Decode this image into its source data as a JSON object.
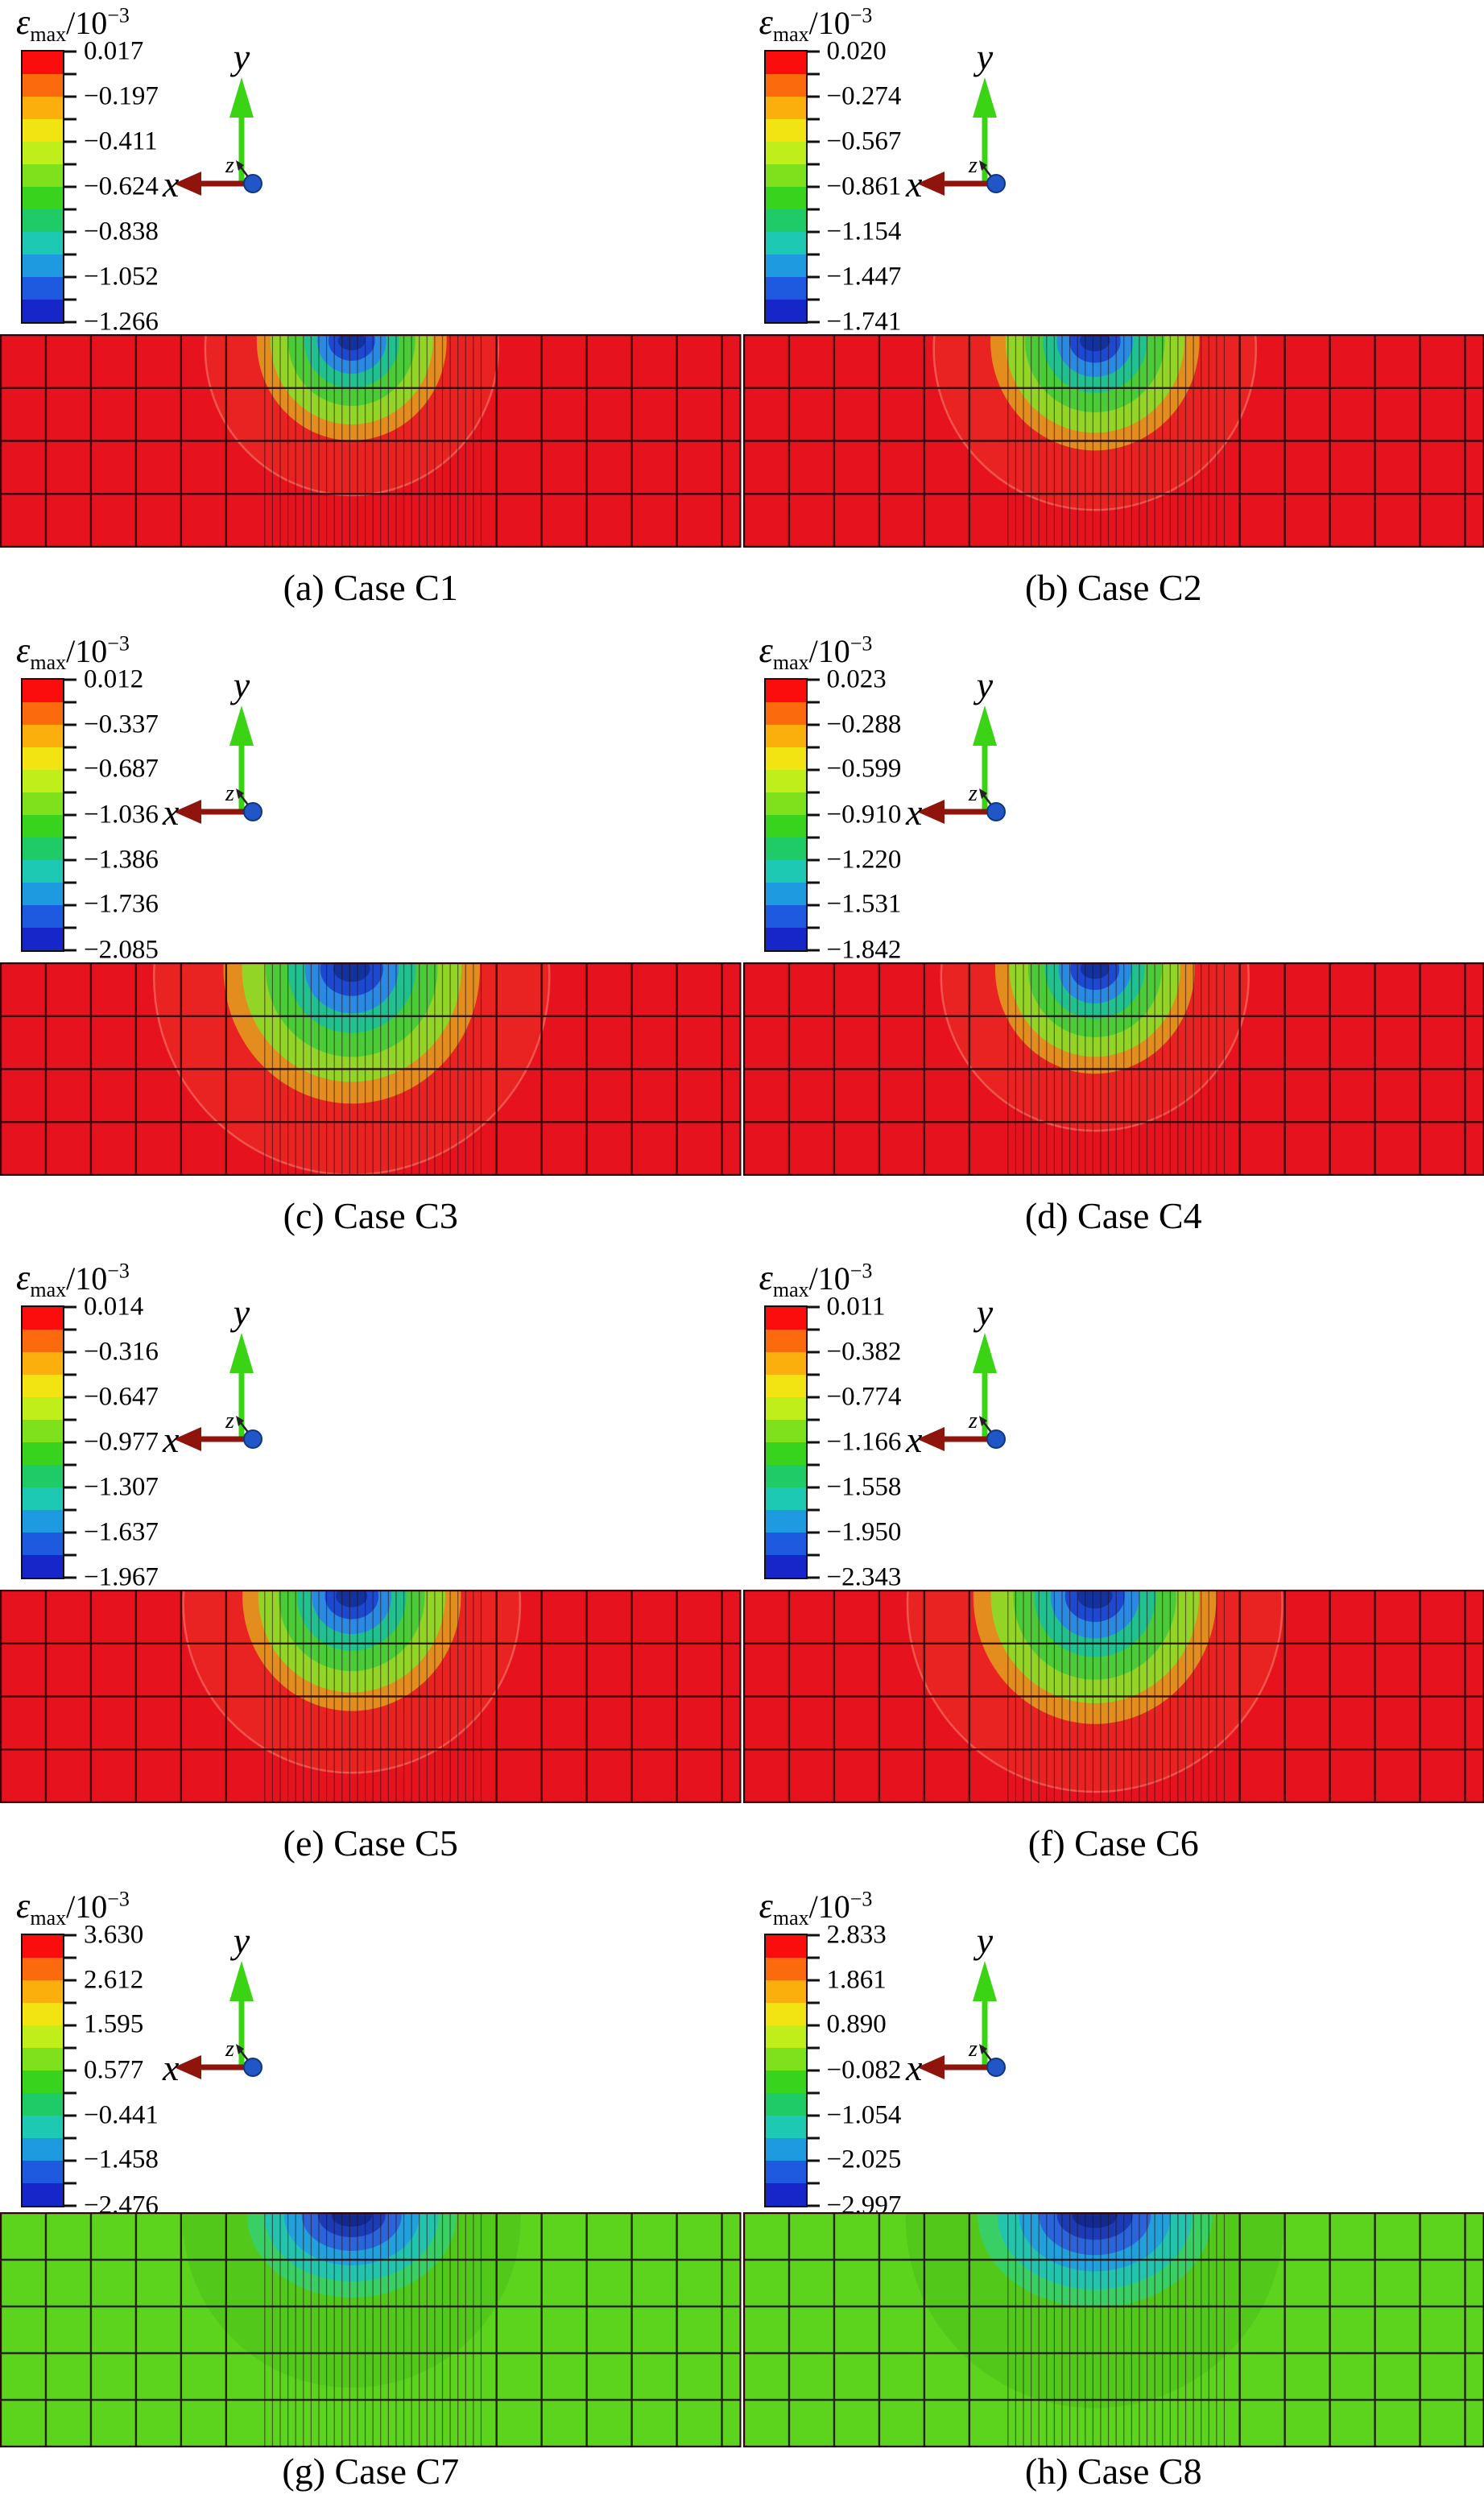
{
  "legend": {
    "symbol": "ε",
    "subscript": "max",
    "divisor": "/10",
    "exponent": "−3"
  },
  "axes": {
    "x": "x",
    "y": "y",
    "z": "z"
  },
  "panels": [
    {
      "caption": "(a) Case C1",
      "ticks": [
        "0.017",
        "−0.197",
        "−0.411",
        "−0.624",
        "−0.838",
        "−1.052",
        "−1.266"
      ]
    },
    {
      "caption": "(b) Case C2",
      "ticks": [
        "0.020",
        "−0.274",
        "−0.567",
        "−0.861",
        "−1.154",
        "−1.447",
        "−1.741"
      ]
    },
    {
      "caption": "(c) Case C3",
      "ticks": [
        "0.012",
        "−0.337",
        "−0.687",
        "−1.036",
        "−1.386",
        "−1.736",
        "−2.085"
      ]
    },
    {
      "caption": "(d) Case C4",
      "ticks": [
        "0.023",
        "−0.288",
        "−0.599",
        "−0.910",
        "−1.220",
        "−1.531",
        "−1.842"
      ]
    },
    {
      "caption": "(e) Case C5",
      "ticks": [
        "0.014",
        "−0.316",
        "−0.647",
        "−0.977",
        "−1.307",
        "−1.637",
        "−1.967"
      ]
    },
    {
      "caption": "(f) Case C6",
      "ticks": [
        "0.011",
        "−0.382",
        "−0.774",
        "−1.166",
        "−1.558",
        "−1.950",
        "−2.343"
      ]
    },
    {
      "caption": "(g) Case C7",
      "ticks": [
        "3.630",
        "2.612",
        "1.595",
        "0.577",
        "−0.441",
        "−1.458",
        "−2.476"
      ]
    },
    {
      "caption": "(h) Case C8",
      "ticks": [
        "2.833",
        "1.861",
        "0.890",
        "−0.082",
        "−1.054",
        "−2.025",
        "−2.997"
      ]
    }
  ],
  "colors": {
    "colorbar_top": "#fb0d0d",
    "colorbar_bottom": "#1626c8",
    "contour_red_background": "#e6131f",
    "contour_green_background": "#5cd41e",
    "x_axis_arrow": "#8e140c",
    "y_axis_arrow": "#3ad414",
    "z_origin_dot": "#2056c6"
  },
  "chart_data": [
    {
      "type": "heatmap",
      "panel": "a",
      "case": "C1",
      "quantity": "εmax/10⁻³",
      "colorbar_ticks": [
        0.017,
        -0.197,
        -0.411,
        -0.624,
        -0.838,
        -1.052,
        -1.266
      ],
      "max": 0.017,
      "min": -1.266,
      "palette": "rainbow (red=max, blue=min)"
    },
    {
      "type": "heatmap",
      "panel": "b",
      "case": "C2",
      "quantity": "εmax/10⁻³",
      "colorbar_ticks": [
        0.02,
        -0.274,
        -0.567,
        -0.861,
        -1.154,
        -1.447,
        -1.741
      ],
      "max": 0.02,
      "min": -1.741,
      "palette": "rainbow (red=max, blue=min)"
    },
    {
      "type": "heatmap",
      "panel": "c",
      "case": "C3",
      "quantity": "εmax/10⁻³",
      "colorbar_ticks": [
        0.012,
        -0.337,
        -0.687,
        -1.036,
        -1.386,
        -1.736,
        -2.085
      ],
      "max": 0.012,
      "min": -2.085,
      "palette": "rainbow (red=max, blue=min)"
    },
    {
      "type": "heatmap",
      "panel": "d",
      "case": "C4",
      "quantity": "εmax/10⁻³",
      "colorbar_ticks": [
        0.023,
        -0.288,
        -0.599,
        -0.91,
        -1.22,
        -1.531,
        -1.842
      ],
      "max": 0.023,
      "min": -1.842,
      "palette": "rainbow (red=max, blue=min)"
    },
    {
      "type": "heatmap",
      "panel": "e",
      "case": "C5",
      "quantity": "εmax/10⁻³",
      "colorbar_ticks": [
        0.014,
        -0.316,
        -0.647,
        -0.977,
        -1.307,
        -1.637,
        -1.967
      ],
      "max": 0.014,
      "min": -1.967,
      "palette": "rainbow (red=max, blue=min)"
    },
    {
      "type": "heatmap",
      "panel": "f",
      "case": "C6",
      "quantity": "εmax/10⁻³",
      "colorbar_ticks": [
        0.011,
        -0.382,
        -0.774,
        -1.166,
        -1.558,
        -1.95,
        -2.343
      ],
      "max": 0.011,
      "min": -2.343,
      "palette": "rainbow (red=max, blue=min)"
    },
    {
      "type": "heatmap",
      "panel": "g",
      "case": "C7",
      "quantity": "εmax/10⁻³",
      "colorbar_ticks": [
        3.63,
        2.612,
        1.595,
        0.577,
        -0.441,
        -1.458,
        -2.476
      ],
      "max": 3.63,
      "min": -2.476,
      "palette": "rainbow (red=max, blue=min)"
    },
    {
      "type": "heatmap",
      "panel": "h",
      "case": "C8",
      "quantity": "εmax/10⁻³",
      "colorbar_ticks": [
        2.833,
        1.861,
        0.89,
        -0.082,
        -1.054,
        -2.025,
        -2.997
      ],
      "max": 2.833,
      "min": -2.997,
      "palette": "rainbow (red=max, blue=min)"
    }
  ]
}
